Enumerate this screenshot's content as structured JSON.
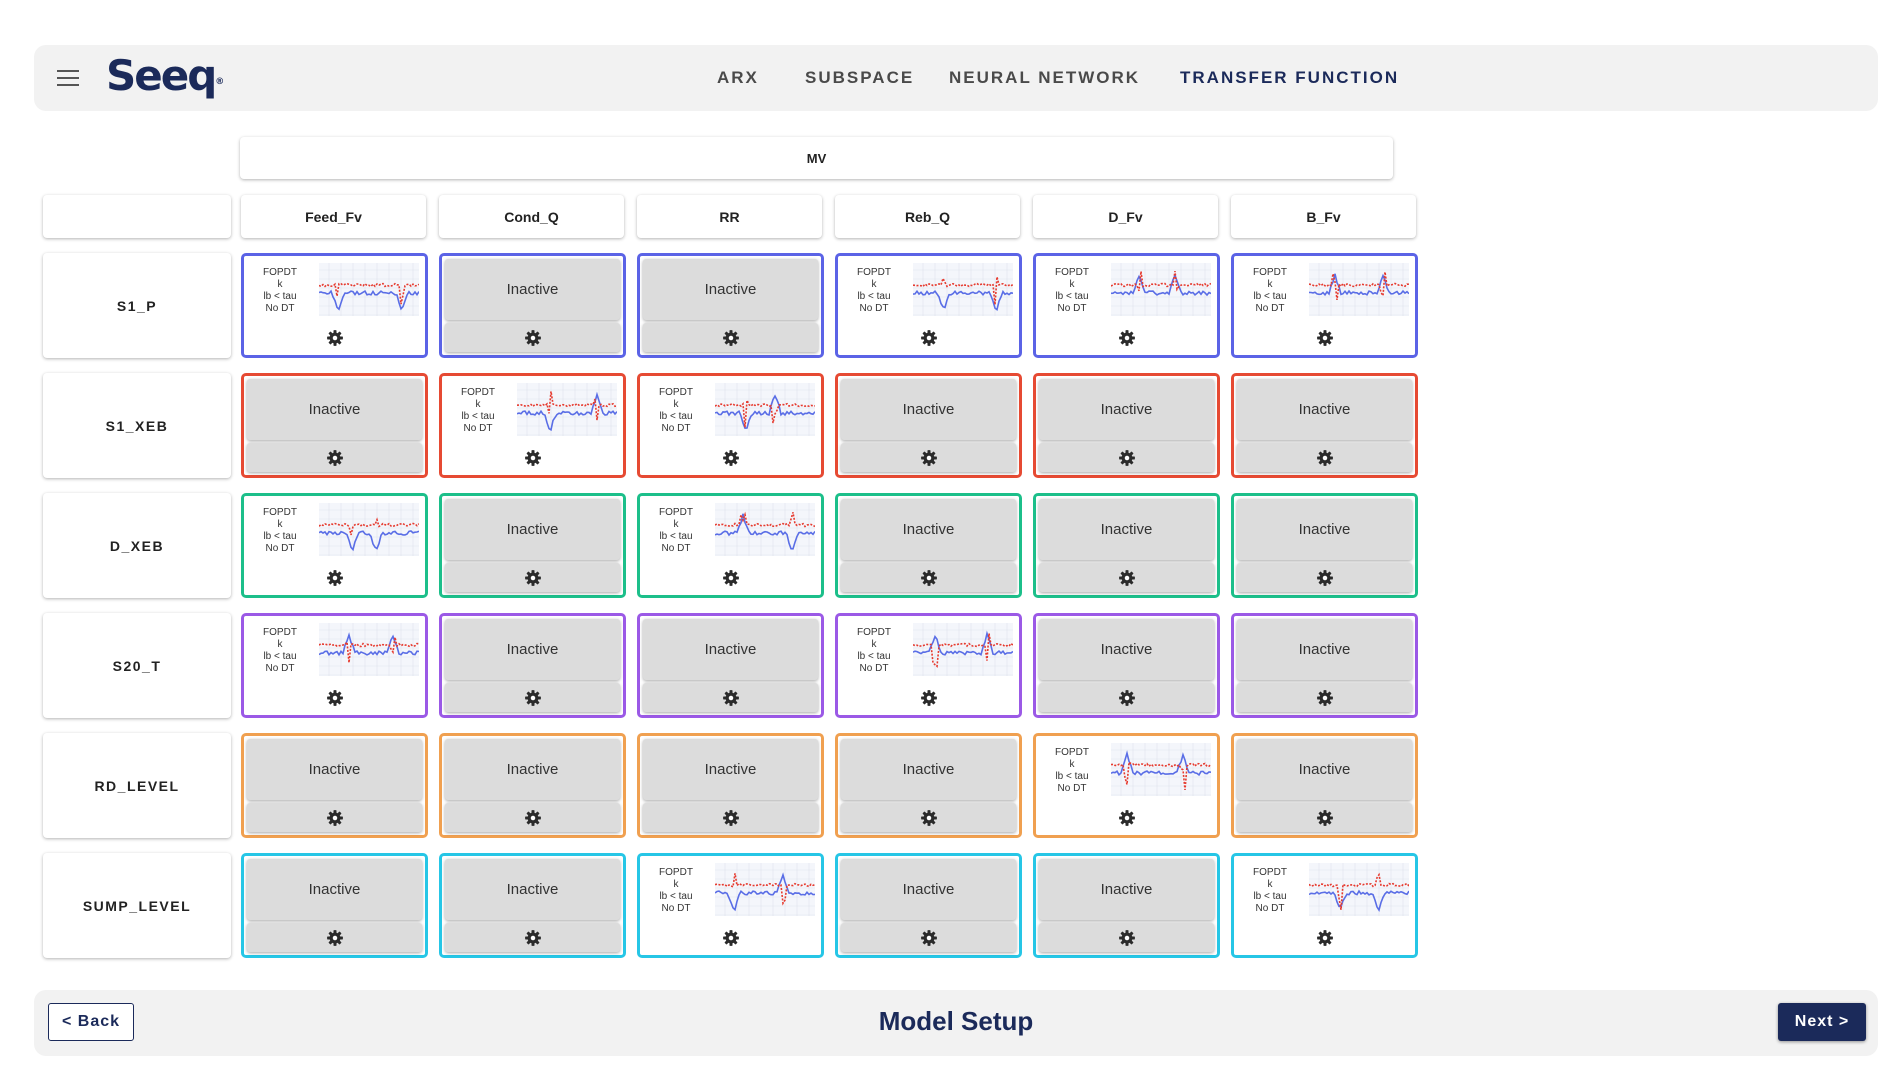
{
  "brand": {
    "logo_text": "Seeq",
    "logo_mark": "®"
  },
  "nav": {
    "tabs": [
      {
        "label": "ARX",
        "active": false
      },
      {
        "label": "SUBSPACE",
        "active": false
      },
      {
        "label": "NEURAL NETWORK",
        "active": false
      },
      {
        "label": "TRANSFER FUNCTION",
        "active": true
      }
    ]
  },
  "matrix": {
    "mv_label": "MV",
    "columns": [
      "Feed_Fv",
      "Cond_Q",
      "RR",
      "Reb_Q",
      "D_Fv",
      "B_Fv"
    ],
    "inactive_label": "Inactive",
    "model_summary": [
      "FOPDT",
      "k",
      "lb < tau",
      "No DT"
    ],
    "rows": [
      {
        "label": "S1_P",
        "color": "#5b63e6",
        "active": [
          true,
          false,
          false,
          true,
          true,
          true
        ]
      },
      {
        "label": "S1_XEB",
        "color": "#e64a33",
        "active": [
          false,
          true,
          true,
          false,
          false,
          false
        ]
      },
      {
        "label": "D_XEB",
        "color": "#1cbf8a",
        "active": [
          true,
          false,
          true,
          false,
          false,
          false
        ]
      },
      {
        "label": "S20_T",
        "color": "#9b59e6",
        "active": [
          true,
          false,
          false,
          true,
          false,
          false
        ]
      },
      {
        "label": "RD_LEVEL",
        "color": "#f0a050",
        "active": [
          false,
          false,
          false,
          false,
          true,
          false
        ]
      },
      {
        "label": "SUMP_LEVEL",
        "color": "#26c6e6",
        "active": [
          false,
          false,
          true,
          false,
          false,
          true
        ]
      }
    ]
  },
  "icons": {
    "settings": "gear-icon",
    "menu": "hamburger-menu-icon"
  },
  "plot_colors": {
    "response": "#5a6ee6",
    "model": "#e63a2e",
    "grid": "#dfe3ee"
  },
  "footer": {
    "back_label": "< Back",
    "title": "Model Setup",
    "next_label": "Next >"
  }
}
